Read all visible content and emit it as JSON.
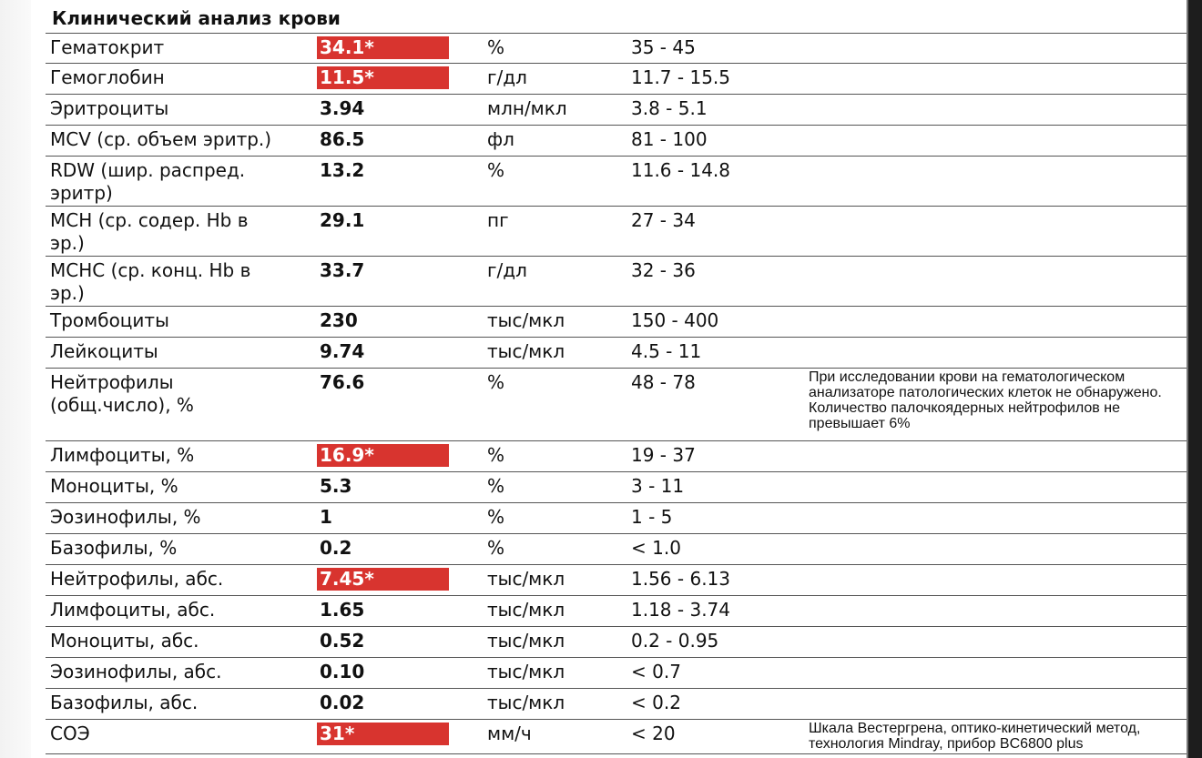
{
  "title": "Клинический анализ крови",
  "colors": {
    "flag_bg": "#d8342f",
    "flag_text": "#ffffff"
  },
  "rows": [
    {
      "name": "Гематокрит",
      "value": "34.1*",
      "unit": "%",
      "ref": "35 - 45",
      "note": "",
      "flag": true
    },
    {
      "name": "Гемоглобин",
      "value": "11.5*",
      "unit": "г/дл",
      "ref": "11.7 - 15.5",
      "note": "",
      "flag": true
    },
    {
      "name": "Эритроциты",
      "value": "3.94",
      "unit": "млн/мкл",
      "ref": "3.8 - 5.1",
      "note": "",
      "flag": false
    },
    {
      "name": "MCV (ср. объем эритр.)",
      "value": "86.5",
      "unit": "фл",
      "ref": "81 - 100",
      "note": "",
      "flag": false
    },
    {
      "name": "RDW (шир. распред. эритр)",
      "value": "13.2",
      "unit": "%",
      "ref": "11.6 - 14.8",
      "note": "",
      "flag": false
    },
    {
      "name": "MCH (ср. содер. Hb в эр.)",
      "value": "29.1",
      "unit": "пг",
      "ref": "27 - 34",
      "note": "",
      "flag": false
    },
    {
      "name": "MCHC (ср. конц. Hb в эр.)",
      "value": "33.7",
      "unit": "г/дл",
      "ref": "32 - 36",
      "note": "",
      "flag": false
    },
    {
      "name": "Тромбоциты",
      "value": "230",
      "unit": "тыс/мкл",
      "ref": "150 - 400",
      "note": "",
      "flag": false
    },
    {
      "name": "Лейкоциты",
      "value": "9.74",
      "unit": "тыс/мкл",
      "ref": "4.5 - 11",
      "note": "",
      "flag": false
    },
    {
      "name": "Нейтрофилы (общ.число), %",
      "value": "76.6",
      "unit": "%",
      "ref": "48 - 78",
      "note": "При исследовании крови на гематологическом анализаторе патологических клеток не обнаружено. Количество палочкоядерных нейтрофилов не превышает 6%",
      "flag": false
    },
    {
      "name": "Лимфоциты, %",
      "value": "16.9*",
      "unit": "%",
      "ref": "19 - 37",
      "note": "",
      "flag": true
    },
    {
      "name": "Моноциты, %",
      "value": "5.3",
      "unit": "%",
      "ref": "3 - 11",
      "note": "",
      "flag": false
    },
    {
      "name": "Эозинофилы, %",
      "value": "1",
      "unit": "%",
      "ref": "1 - 5",
      "note": "",
      "flag": false
    },
    {
      "name": "Базофилы, %",
      "value": "0.2",
      "unit": "%",
      "ref": "< 1.0",
      "note": "",
      "flag": false
    },
    {
      "name": "Нейтрофилы, абс.",
      "value": "7.45*",
      "unit": "тыс/мкл",
      "ref": "1.56 - 6.13",
      "note": "",
      "flag": true
    },
    {
      "name": "Лимфоциты, абс.",
      "value": "1.65",
      "unit": "тыс/мкл",
      "ref": "1.18 - 3.74",
      "note": "",
      "flag": false
    },
    {
      "name": "Моноциты, абс.",
      "value": "0.52",
      "unit": "тыс/мкл",
      "ref": "0.2 - 0.95",
      "note": "",
      "flag": false
    },
    {
      "name": "Эозинофилы, абс.",
      "value": "0.10",
      "unit": "тыс/мкл",
      "ref": "< 0.7",
      "note": "",
      "flag": false
    },
    {
      "name": "Базофилы, абс.",
      "value": "0.02",
      "unit": "тыс/мкл",
      "ref": "< 0.2",
      "note": "",
      "flag": false
    },
    {
      "name": "СОЭ",
      "value": "31*",
      "unit": "мм/ч",
      "ref": "< 20",
      "note": "Шкала Вестергрена, оптико-кинетический метод, технология Mindray, прибор BC6800 plus",
      "flag": true
    }
  ]
}
